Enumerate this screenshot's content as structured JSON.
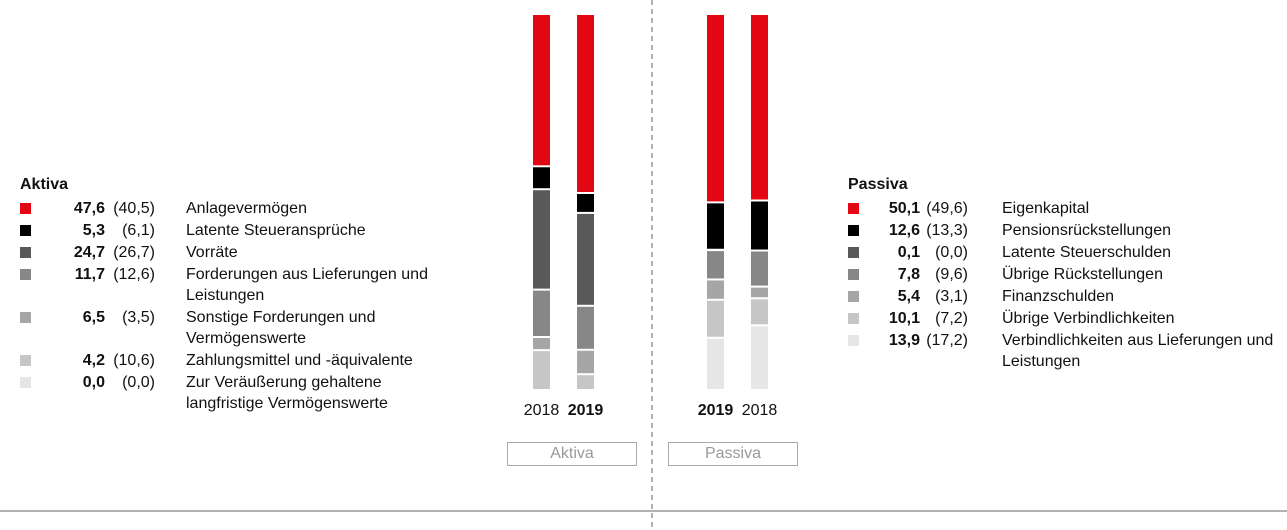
{
  "chart_data": [
    {
      "type": "stacked_bar",
      "title": "Aktiva",
      "button": "Aktiva",
      "categories": [
        "2018",
        "2019"
      ],
      "bold_category_index": 1,
      "ylim": [
        0,
        100
      ],
      "series": [
        {
          "name": "Anlagevermögen",
          "color": "#e30613",
          "values": [
            40.5,
            47.6
          ],
          "value_labels": [
            "(40,5)",
            "47,6"
          ]
        },
        {
          "name": "Latente Steueransprüche",
          "color": "#000000",
          "values": [
            6.1,
            5.3
          ],
          "value_labels": [
            "(6,1)",
            "5,3"
          ]
        },
        {
          "name": "Vorräte",
          "color": "#595959",
          "values": [
            26.7,
            24.7
          ],
          "value_labels": [
            "(26,7)",
            "24,7"
          ]
        },
        {
          "name": "Forderungen aus Lieferungen und Leistungen",
          "color": "#878787",
          "values": [
            12.6,
            11.7
          ],
          "value_labels": [
            "(12,6)",
            "11,7"
          ]
        },
        {
          "name": "Sonstige Forderungen und Vermögenswerte",
          "color": "#a6a6a6",
          "values": [
            3.5,
            6.5
          ],
          "value_labels": [
            "(3,5)",
            "6,5"
          ]
        },
        {
          "name": "Zahlungsmittel und -äquivalente",
          "color": "#c6c6c6",
          "values": [
            10.6,
            4.2
          ],
          "value_labels": [
            "(10,6)",
            "4,2"
          ]
        },
        {
          "name": "Zur Veräußerung gehaltene langfristige Vermögenswerte",
          "color": "#e6e6e6",
          "values": [
            0.0,
            0.0
          ],
          "value_labels": [
            "(0,0)",
            "0,0"
          ]
        }
      ]
    },
    {
      "type": "stacked_bar",
      "title": "Passiva",
      "button": "Passiva",
      "categories": [
        "2019",
        "2018"
      ],
      "bold_category_index": 0,
      "ylim": [
        0,
        100
      ],
      "series": [
        {
          "name": "Eigenkapital",
          "color": "#e30613",
          "values": [
            50.1,
            49.6
          ],
          "value_labels": [
            "50,1",
            "(49,6)"
          ]
        },
        {
          "name": "Pensionsrückstellungen",
          "color": "#000000",
          "values": [
            12.6,
            13.3
          ],
          "value_labels": [
            "12,6",
            "(13,3)"
          ]
        },
        {
          "name": "Latente Steuerschulden",
          "color": "#595959",
          "values": [
            0.1,
            0.0
          ],
          "value_labels": [
            "0,1",
            "(0,0)"
          ]
        },
        {
          "name": "Übrige Rückstellungen",
          "color": "#878787",
          "values": [
            7.8,
            9.6
          ],
          "value_labels": [
            "7,8",
            "(9,6)"
          ]
        },
        {
          "name": "Finanzschulden",
          "color": "#a6a6a6",
          "values": [
            5.4,
            3.1
          ],
          "value_labels": [
            "5,4",
            "(3,1)"
          ]
        },
        {
          "name": "Übrige Verbindlichkeiten",
          "color": "#c6c6c6",
          "values": [
            10.1,
            7.2
          ],
          "value_labels": [
            "10,1",
            "(7,2)"
          ]
        },
        {
          "name": "Verbindlichkeiten aus Lieferungen und Leistungen",
          "color": "#e6e6e6",
          "values": [
            13.9,
            17.2
          ],
          "value_labels": [
            "13,9",
            "(17,2)"
          ]
        }
      ]
    }
  ]
}
